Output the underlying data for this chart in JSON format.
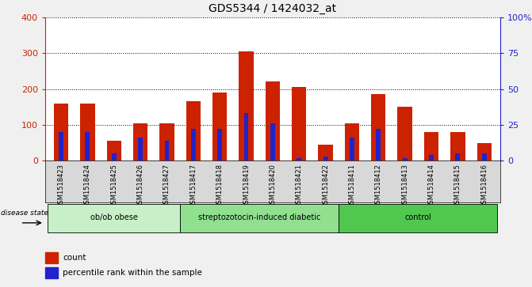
{
  "title": "GDS5344 / 1424032_at",
  "samples": [
    "GSM1518423",
    "GSM1518424",
    "GSM1518425",
    "GSM1518426",
    "GSM1518427",
    "GSM1518417",
    "GSM1518418",
    "GSM1518419",
    "GSM1518420",
    "GSM1518421",
    "GSM1518422",
    "GSM1518411",
    "GSM1518412",
    "GSM1518413",
    "GSM1518414",
    "GSM1518415",
    "GSM1518416"
  ],
  "counts": [
    160,
    160,
    55,
    105,
    105,
    165,
    190,
    305,
    220,
    205,
    45,
    105,
    185,
    150,
    80,
    80,
    50
  ],
  "percentiles_right": [
    20,
    20,
    5,
    16,
    14,
    22,
    22,
    33,
    26,
    2,
    3,
    16,
    22,
    2,
    4,
    5,
    5
  ],
  "groups": {
    "ob/ob obese": [
      0,
      5
    ],
    "streptozotocin-induced diabetic": [
      5,
      11
    ],
    "control": [
      11,
      17
    ]
  },
  "group_colors": {
    "ob/ob obese": "#c8f0c8",
    "streptozotocin-induced diabetic": "#90e090",
    "control": "#50c850"
  },
  "ylim_left": [
    0,
    400
  ],
  "ylim_right": [
    0,
    100
  ],
  "yticks_left": [
    0,
    100,
    200,
    300,
    400
  ],
  "yticks_right": [
    0,
    25,
    50,
    75,
    100
  ],
  "bar_color_red": "#cc2200",
  "bar_color_blue": "#2222cc",
  "bg_color": "#e8e8e8",
  "plot_bg": "#ffffff",
  "legend_count": "count",
  "legend_percentile": "percentile rank within the sample",
  "disease_state_label": "disease state",
  "fig_bg": "#f0f0f0"
}
